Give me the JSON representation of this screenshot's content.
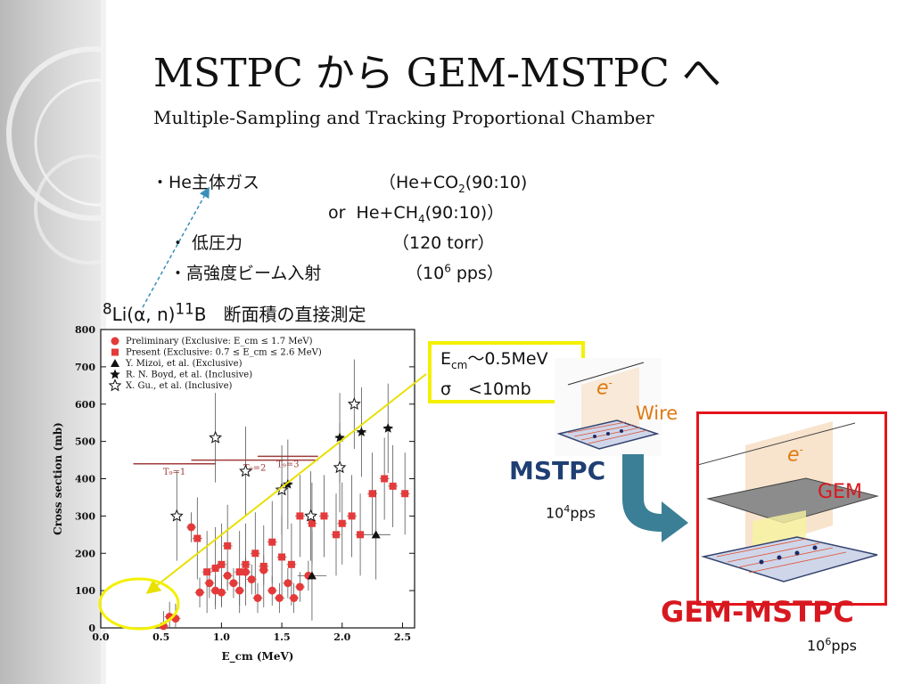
{
  "slide": {
    "title": "MSTPC から GEM-MSTPC へ",
    "subtitle": "Multiple-Sampling and Tracking Proportional Chamber"
  },
  "bullets": {
    "he_gas": {
      "label": "・He主体ガス",
      "detail_open": "（He+CO",
      "detail_sub": "2",
      "detail_close": "(90:10)"
    },
    "or_line": {
      "or": "or",
      "gas": "He+CH",
      "sub": "4",
      "close": "(90:10)）"
    },
    "low_pressure": {
      "label": "・ 低圧力",
      "detail": "（120 torr）"
    },
    "high_intensity": {
      "label": "・高強度ビーム入射",
      "detail_open": "（10",
      "detail_sup": "6",
      "detail_close": " pps）"
    }
  },
  "chart_title": {
    "pre_sup": "8",
    "reaction": "Li(α, n)",
    "post_sup": "11",
    "post": "B",
    "desc": "断面積の直接測定"
  },
  "callout": {
    "ecm_label": "E",
    "ecm_sub": "cm",
    "ecm_value": "～0.5MeV",
    "sigma": "σ　<10mb"
  },
  "detector": {
    "electron": "e",
    "electron_sup": "-",
    "wire": "Wire",
    "gem": "GEM",
    "mstpc": "MSTPC",
    "mstpc_rate_base": "10",
    "mstpc_rate_exp": "4",
    "mstpc_rate_unit": "pps",
    "gem_mstpc": "GEM-MSTPC",
    "gem_rate_base": "10",
    "gem_rate_exp": "6",
    "gem_rate_unit": "pps"
  },
  "colors": {
    "mstpc": "#1f3f74",
    "gem_mstpc": "#d81820",
    "callout_border": "#f4f000",
    "arrow": "#3a7f96",
    "wire": "#e07a10"
  },
  "chart_data": {
    "type": "scatter",
    "xlabel": "E_cm (MeV)",
    "ylabel": "Cross section (mb)",
    "xlim": [
      0.0,
      2.6
    ],
    "ylim": [
      0,
      800
    ],
    "xticks": [
      "0.0",
      "0.5",
      "1.0",
      "1.5",
      "2.0",
      "2.5"
    ],
    "yticks": [
      "0",
      "100",
      "200",
      "300",
      "400",
      "500",
      "600",
      "700",
      "800"
    ],
    "legend": [
      "Preliminary (Exclusive: E_cm ≤ 1.7 MeV)",
      "Present (Exclusive: 0.7 ≤ E_cm ≤ 2.6 MeV)",
      "Y. Mizoi, et al. (Exclusive)",
      "R. N. Boyd, et al. (Inclusive)",
      "X. Gu., et al. (Inclusive)"
    ],
    "legend_position": "top-left",
    "thresholds": [
      "T₉=1",
      "T₉=2",
      "T₉=3"
    ],
    "series": [
      {
        "name": "Preliminary (Exclusive: E_cm ≤ 1.7 MeV)",
        "marker": "circle",
        "x": [
          0.52,
          0.57,
          0.62,
          0.75,
          0.82,
          0.9,
          0.95,
          1.0,
          1.05,
          1.1,
          1.15,
          1.2,
          1.25,
          1.3,
          1.35,
          1.42,
          1.48,
          1.55,
          1.6,
          1.65,
          1.72
        ],
        "y": [
          5,
          30,
          25,
          270,
          95,
          120,
          100,
          95,
          140,
          120,
          100,
          150,
          130,
          80,
          155,
          100,
          80,
          120,
          80,
          110,
          140
        ]
      },
      {
        "name": "Present (Exclusive: 0.7 ≤ E_cm ≤ 2.6 MeV)",
        "marker": "square",
        "x": [
          0.8,
          0.88,
          0.95,
          1.0,
          1.05,
          1.15,
          1.2,
          1.28,
          1.35,
          1.42,
          1.5,
          1.58,
          1.65,
          1.75,
          1.85,
          1.95,
          2.0,
          2.08,
          2.15,
          2.25,
          2.35,
          2.42,
          2.52
        ],
        "y": [
          240,
          150,
          160,
          170,
          220,
          150,
          170,
          200,
          165,
          230,
          190,
          170,
          300,
          280,
          300,
          250,
          280,
          300,
          250,
          360,
          400,
          380,
          360
        ]
      },
      {
        "name": "Y. Mizoi, et al. (Exclusive)",
        "marker": "triangle",
        "x": [
          1.75,
          2.28
        ],
        "y": [
          140,
          250
        ]
      },
      {
        "name": "R. N. Boyd, et al. (Inclusive)",
        "marker": "star",
        "x": [
          1.55,
          1.98,
          2.16,
          2.38
        ],
        "y": [
          385,
          510,
          525,
          535
        ]
      },
      {
        "name": "X. Gu., et al. (Inclusive)",
        "marker": "open-star",
        "x": [
          0.63,
          0.95,
          1.2,
          1.5,
          1.74,
          1.98,
          2.1
        ],
        "y": [
          300,
          510,
          420,
          370,
          300,
          430,
          600
        ]
      }
    ]
  }
}
